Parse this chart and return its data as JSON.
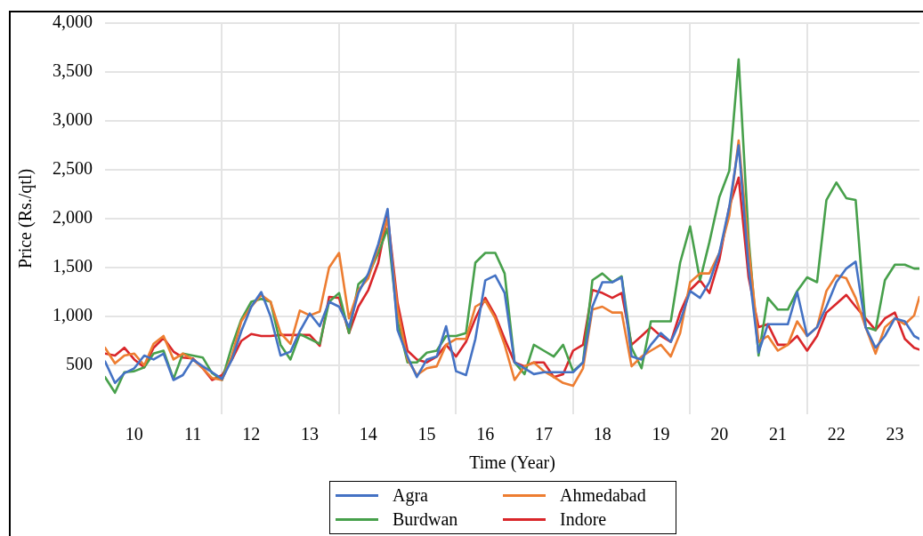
{
  "chart_data": {
    "type": "line",
    "xlabel": "Time (Year)",
    "ylabel": "Price (Rs./qtl)",
    "x": [
      10,
      10.17,
      10.33,
      10.5,
      10.67,
      10.83,
      11,
      11.17,
      11.33,
      11.5,
      11.67,
      11.83,
      12,
      12.17,
      12.33,
      12.5,
      12.67,
      12.83,
      13,
      13.17,
      13.33,
      13.5,
      13.67,
      13.83,
      14,
      14.17,
      14.33,
      14.5,
      14.67,
      14.83,
      15,
      15.17,
      15.33,
      15.5,
      15.67,
      15.83,
      16,
      16.17,
      16.33,
      16.5,
      16.67,
      16.83,
      17,
      17.17,
      17.33,
      17.5,
      17.67,
      17.83,
      18,
      18.17,
      18.33,
      18.5,
      18.67,
      18.83,
      19,
      19.17,
      19.33,
      19.5,
      19.67,
      19.83,
      20,
      20.17,
      20.33,
      20.5,
      20.67,
      20.83,
      21,
      21.17,
      21.33,
      21.5,
      21.67,
      21.83,
      22,
      22.17,
      22.33,
      22.5,
      22.67,
      22.83,
      23,
      23.17,
      23.33,
      23.5,
      23.67,
      23.83,
      23.92
    ],
    "series": [
      {
        "name": "Agra",
        "color": "#4472c4",
        "values": [
          540,
          320,
          420,
          470,
          600,
          560,
          620,
          350,
          400,
          560,
          490,
          430,
          360,
          560,
          850,
          1100,
          1250,
          1000,
          600,
          640,
          850,
          1030,
          900,
          1150,
          1100,
          890,
          1240,
          1440,
          1740,
          2100,
          860,
          590,
          380,
          560,
          590,
          900,
          440,
          400,
          770,
          1370,
          1420,
          1240,
          530,
          470,
          410,
          430,
          430,
          430,
          430,
          530,
          1100,
          1350,
          1350,
          1400,
          590,
          560,
          710,
          830,
          740,
          950,
          1260,
          1190,
          1350,
          1650,
          2120,
          2750,
          1500,
          630,
          920,
          920,
          920,
          1250,
          800,
          890,
          1100,
          1350,
          1490,
          1560,
          890,
          680,
          800,
          980,
          950,
          800,
          770
        ]
      },
      {
        "name": "Ahmedabad",
        "color": "#ed7d31",
        "values": [
          680,
          520,
          600,
          620,
          500,
          720,
          800,
          560,
          620,
          560,
          470,
          370,
          350,
          600,
          950,
          1100,
          1220,
          1150,
          830,
          720,
          1060,
          1010,
          1050,
          1500,
          1650,
          980,
          1270,
          1390,
          1710,
          2000,
          1070,
          560,
          400,
          470,
          490,
          710,
          770,
          770,
          1100,
          1160,
          980,
          710,
          350,
          490,
          530,
          440,
          380,
          320,
          290,
          470,
          1070,
          1100,
          1040,
          1040,
          490,
          590,
          650,
          710,
          590,
          830,
          1350,
          1440,
          1440,
          1650,
          2030,
          2800,
          1700,
          740,
          800,
          650,
          710,
          950,
          800,
          890,
          1260,
          1420,
          1390,
          1190,
          890,
          620,
          890,
          980,
          920,
          1010,
          1200
        ]
      },
      {
        "name": "Burdwan",
        "color": "#47a04b",
        "values": [
          380,
          220,
          430,
          440,
          480,
          620,
          650,
          360,
          620,
          600,
          580,
          420,
          350,
          700,
          970,
          1150,
          1180,
          1150,
          710,
          560,
          820,
          770,
          720,
          1150,
          1240,
          830,
          1330,
          1420,
          1650,
          1900,
          950,
          530,
          530,
          630,
          650,
          800,
          800,
          830,
          1550,
          1650,
          1650,
          1440,
          530,
          410,
          710,
          650,
          590,
          710,
          440,
          530,
          1370,
          1440,
          1350,
          1410,
          680,
          470,
          950,
          950,
          950,
          1550,
          1920,
          1370,
          1760,
          2220,
          2490,
          3630,
          1800,
          600,
          1190,
          1070,
          1070,
          1260,
          1400,
          1350,
          2190,
          2370,
          2210,
          2190,
          890,
          860,
          1370,
          1530,
          1530,
          1490,
          1490
        ]
      },
      {
        "name": "Indore",
        "color": "#d9262a",
        "values": [
          620,
          600,
          680,
          560,
          480,
          680,
          780,
          640,
          580,
          570,
          470,
          350,
          400,
          560,
          750,
          820,
          800,
          800,
          810,
          810,
          810,
          810,
          700,
          1200,
          1190,
          830,
          1100,
          1270,
          1550,
          2030,
          1140,
          650,
          560,
          530,
          590,
          710,
          590,
          740,
          980,
          1190,
          1010,
          770,
          530,
          490,
          530,
          530,
          380,
          410,
          650,
          710,
          1270,
          1240,
          1190,
          1240,
          710,
          800,
          890,
          800,
          740,
          1040,
          1270,
          1370,
          1240,
          1580,
          2120,
          2420,
          1400,
          890,
          920,
          710,
          710,
          800,
          650,
          800,
          1040,
          1130,
          1220,
          1100,
          980,
          860,
          980,
          1040,
          770,
          680,
          660
        ]
      }
    ],
    "xlim": [
      10,
      23.92
    ],
    "xticks": [
      {
        "value": 10.5,
        "label": "10"
      },
      {
        "value": 11.5,
        "label": "11"
      },
      {
        "value": 12,
        "label": null
      },
      {
        "value": 12.5,
        "label": "12"
      },
      {
        "value": 13.5,
        "label": "13"
      },
      {
        "value": 14,
        "label": null
      },
      {
        "value": 14.5,
        "label": "14"
      },
      {
        "value": 15.5,
        "label": "15"
      },
      {
        "value": 16,
        "label": null
      },
      {
        "value": 16.5,
        "label": "16"
      },
      {
        "value": 17.5,
        "label": "17"
      },
      {
        "value": 18,
        "label": null
      },
      {
        "value": 18.5,
        "label": "18"
      },
      {
        "value": 19.5,
        "label": "19"
      },
      {
        "value": 20,
        "label": null
      },
      {
        "value": 20.5,
        "label": "20"
      },
      {
        "value": 21.5,
        "label": "21"
      },
      {
        "value": 22,
        "label": null
      },
      {
        "value": 22.5,
        "label": "22"
      },
      {
        "value": 23.5,
        "label": "23"
      }
    ],
    "ylim": [
      0,
      4000
    ],
    "yticks": [
      {
        "value": 500,
        "label": "500"
      },
      {
        "value": 1000,
        "label": "1,000"
      },
      {
        "value": 1500,
        "label": "1,500"
      },
      {
        "value": 2000,
        "label": "2,000"
      },
      {
        "value": 2500,
        "label": "2,500"
      },
      {
        "value": 3000,
        "label": "3,000"
      },
      {
        "value": 3500,
        "label": "3,500"
      },
      {
        "value": 4000,
        "label": "4,000"
      }
    ],
    "grid": true,
    "legend": "bottom",
    "marker": "none",
    "line_style": "solid"
  }
}
